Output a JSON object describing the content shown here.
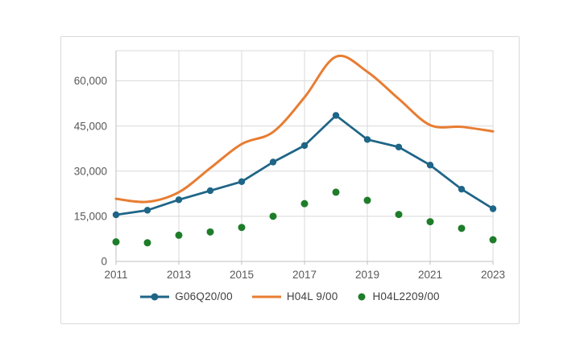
{
  "page": {
    "background": "#ffffff"
  },
  "panel": {
    "background": "#ffffff",
    "border_color": "#d9d9d9"
  },
  "chart_data": {
    "type": "line",
    "title": "",
    "xlabel": "",
    "ylabel": "",
    "x": [
      2011,
      2012,
      2013,
      2014,
      2015,
      2016,
      2017,
      2018,
      2019,
      2020,
      2021,
      2022,
      2023
    ],
    "series": [
      {
        "name": "G06Q20/00",
        "style": "line-with-markers",
        "color": "#1f6587",
        "values": [
          15500,
          17000,
          20500,
          23500,
          26500,
          33000,
          38500,
          48500,
          40500,
          38000,
          32000,
          24000,
          17500
        ]
      },
      {
        "name": "H04L 9/00",
        "style": "smooth-line",
        "color": "#e87d32",
        "values": [
          20800,
          19800,
          23000,
          31000,
          39000,
          43000,
          54500,
          68000,
          63000,
          54000,
          45300,
          44700,
          43200
        ]
      },
      {
        "name": "H04L2209/00",
        "style": "markers-only",
        "color": "#1f7d2a",
        "values": [
          6500,
          6200,
          8700,
          9800,
          11300,
          15000,
          19200,
          23000,
          20300,
          15600,
          13200,
          11000,
          7200
        ]
      }
    ],
    "ylim": [
      0,
      70000
    ],
    "y_ticks": [
      {
        "value": 0,
        "label": "0"
      },
      {
        "value": 15000,
        "label": "15,000"
      },
      {
        "value": 30000,
        "label": "30,000"
      },
      {
        "value": 45000,
        "label": "45,000"
      },
      {
        "value": 60000,
        "label": "60,000"
      }
    ],
    "x_tick_labels": [
      "2011",
      "2013",
      "2015",
      "2017",
      "2019",
      "2021",
      "2023"
    ],
    "x_tick_years": [
      2011,
      2013,
      2015,
      2017,
      2019,
      2021,
      2023
    ],
    "grid": true,
    "legend_position": "bottom",
    "colors": {
      "gridline": "#d9d9d9",
      "axis_line": "#bfbfbf",
      "tick_label": "#595959",
      "legend_text": "#404040"
    }
  }
}
